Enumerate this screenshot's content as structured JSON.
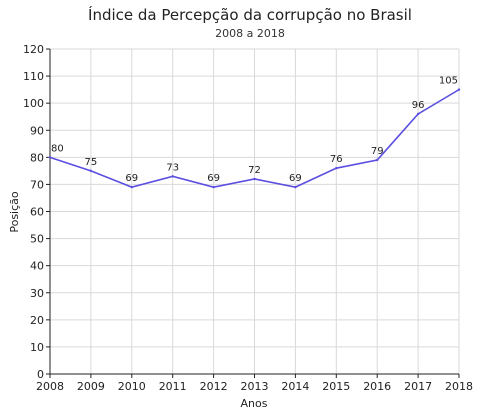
{
  "chart_data": {
    "type": "line",
    "title": "Índice da Percepção da corrupção no Brasil",
    "subtitle": "2008 a 2018",
    "xlabel": "Anos",
    "ylabel": "Posição",
    "x": [
      2008,
      2009,
      2010,
      2011,
      2012,
      2013,
      2014,
      2015,
      2016,
      2017,
      2018
    ],
    "series": [
      {
        "values": [
          80,
          75,
          69,
          73,
          69,
          72,
          69,
          76,
          79,
          96,
          105
        ],
        "color": "#5a4fe0"
      }
    ],
    "xlim": [
      2008,
      2018
    ],
    "ylim": [
      0,
      120
    ],
    "y_ticks": [
      0,
      10,
      20,
      30,
      40,
      50,
      60,
      70,
      80,
      90,
      100,
      110,
      120
    ],
    "grid": true,
    "data_labels": true
  }
}
